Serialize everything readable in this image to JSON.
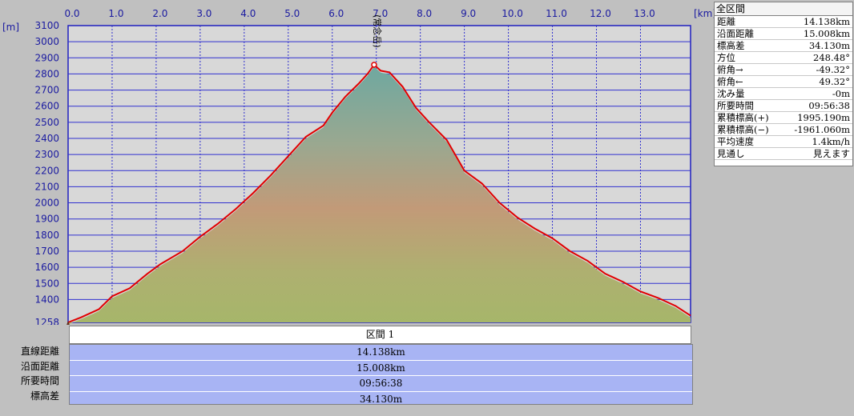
{
  "chart_data": {
    "type": "area",
    "title": "",
    "xlabel": "[km]",
    "ylabel": "[m]",
    "xlim": [
      0,
      14.138
    ],
    "ylim": [
      1258,
      3100
    ],
    "x_ticks": [
      0,
      1,
      2,
      3,
      4,
      5,
      6,
      7,
      8,
      9,
      10,
      11,
      12,
      13
    ],
    "x_tick_labels": [
      "0.0",
      "1.0",
      "2.0",
      "3.0",
      "4.0",
      "5.0",
      "6.0",
      "7.0",
      "8.0",
      "9.0",
      "10.0",
      "11.0",
      "12.0",
      "13.0"
    ],
    "y_ticks": [
      1258,
      1400,
      1500,
      1600,
      1700,
      1800,
      1900,
      2000,
      2100,
      2200,
      2300,
      2400,
      2500,
      2600,
      2700,
      2800,
      2900,
      3000,
      3100
    ],
    "y_tick_labels": [
      "1258",
      "1400",
      "1500",
      "1600",
      "1700",
      "1800",
      "1900",
      "2000",
      "2100",
      "2200",
      "2300",
      "2400",
      "2500",
      "2600",
      "2700",
      "2800",
      "2900",
      "3000",
      "3100"
    ],
    "grid": true,
    "annotation": {
      "text": "(常念岳)",
      "x": 6.95,
      "y": 2857
    },
    "series": [
      {
        "name": "",
        "color": "#e00000",
        "x": [
          0.0,
          0.3,
          0.7,
          1.0,
          1.4,
          1.8,
          2.1,
          2.6,
          3.0,
          3.4,
          3.8,
          4.2,
          4.6,
          5.0,
          5.4,
          5.8,
          6.0,
          6.3,
          6.6,
          6.8,
          6.95,
          7.1,
          7.3,
          7.6,
          7.9,
          8.2,
          8.6,
          9.0,
          9.4,
          9.8,
          10.2,
          10.6,
          11.0,
          11.4,
          11.8,
          12.2,
          12.6,
          13.0,
          13.4,
          13.8,
          14.138
        ],
        "y": [
          1258,
          1290,
          1340,
          1420,
          1470,
          1560,
          1620,
          1700,
          1790,
          1870,
          1960,
          2060,
          2170,
          2290,
          2410,
          2480,
          2560,
          2660,
          2740,
          2800,
          2857,
          2820,
          2810,
          2720,
          2590,
          2500,
          2390,
          2200,
          2120,
          2000,
          1910,
          1840,
          1780,
          1700,
          1640,
          1560,
          1510,
          1450,
          1410,
          1360,
          1300
        ]
      },
      {
        "name": "",
        "color": "#c8c8c8",
        "x": [
          0.0,
          0.5,
          1.0,
          2.0,
          3.0,
          4.0,
          5.0,
          6.0,
          6.95,
          8.0,
          9.0,
          10.0,
          11.0,
          12.0,
          13.0,
          14.138
        ],
        "y": [
          1258,
          1300,
          1360,
          1520,
          1700,
          1900,
          2180,
          2480,
          2820,
          2470,
          2140,
          1900,
          1700,
          1520,
          1400,
          1270
        ]
      }
    ]
  },
  "stats": {
    "title": "全区間",
    "rows": [
      {
        "label": "距離",
        "value": "14.138km"
      },
      {
        "label": "沿面距離",
        "value": "15.008km"
      },
      {
        "label": "標高差",
        "value": "34.130m"
      },
      {
        "label": "方位",
        "value": "248.48°"
      },
      {
        "label": "俯角→",
        "value": "-49.32°"
      },
      {
        "label": "俯角←",
        "value": "49.32°"
      },
      {
        "label": "沈み量",
        "value": "-0m"
      },
      {
        "label": "所要時間",
        "value": "09:56:38"
      },
      {
        "label": "累積標高(+)",
        "value": "1995.190m"
      },
      {
        "label": "累積標高(−)",
        "value": "-1961.060m"
      },
      {
        "label": "平均速度",
        "value": "1.4km/h"
      },
      {
        "label": "見通し",
        "value": "見えます"
      }
    ]
  },
  "section": {
    "header": "区間 1",
    "labels": [
      "直線距離",
      "沿面距離",
      "所要時間",
      "標高差"
    ],
    "values": [
      "14.138km",
      "15.008km",
      "09:56:38",
      "34.130m"
    ]
  }
}
